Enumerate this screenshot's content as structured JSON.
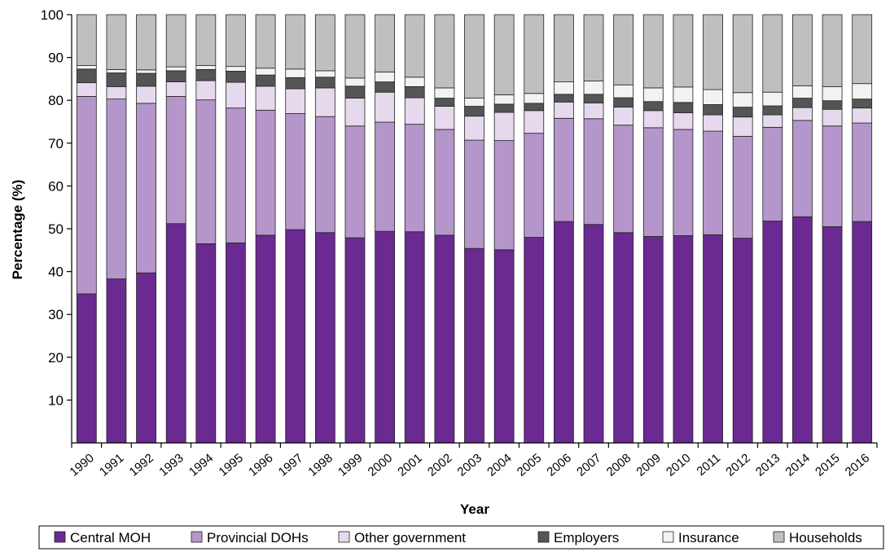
{
  "chart_data": {
    "type": "bar",
    "stacked": true,
    "xlabel": "Year",
    "ylabel": "Percentage (%)",
    "ylim": [
      0,
      100
    ],
    "yticks": [
      10,
      20,
      30,
      40,
      50,
      60,
      70,
      80,
      90,
      100
    ],
    "grid": false,
    "legend_position": "bottom",
    "categories": [
      "1990",
      "1991",
      "1992",
      "1993",
      "1994",
      "1995",
      "1996",
      "1997",
      "1998",
      "1999",
      "2000",
      "2001",
      "2002",
      "2003",
      "2004",
      "2005",
      "2006",
      "2007",
      "2008",
      "2009",
      "2010",
      "2011",
      "2012",
      "2013",
      "2014",
      "2015",
      "2016"
    ],
    "series": [
      {
        "name": "Central MOH",
        "color": "#6a2a91",
        "values": [
          34.8,
          38.3,
          39.7,
          51.2,
          46.5,
          46.7,
          48.5,
          49.8,
          49.1,
          47.9,
          49.4,
          49.3,
          48.5,
          45.4,
          45.1,
          48.0,
          51.7,
          51.0,
          49.1,
          48.2,
          48.4,
          48.6,
          47.8,
          51.8,
          52.8,
          50.5,
          51.7
        ]
      },
      {
        "name": "Provincial DOHs",
        "color": "#b596ca",
        "values": [
          46.1,
          42.0,
          39.6,
          29.7,
          33.6,
          31.5,
          29.2,
          27.1,
          27.1,
          26.1,
          25.5,
          25.1,
          24.7,
          25.3,
          25.5,
          24.3,
          24.1,
          24.7,
          25.1,
          25.4,
          24.8,
          24.2,
          23.8,
          21.9,
          22.5,
          23.5,
          23.0
        ]
      },
      {
        "name": "Other government",
        "color": "#e6d9ee",
        "values": [
          3.2,
          2.9,
          4.0,
          3.4,
          4.5,
          6.0,
          5.6,
          5.8,
          6.7,
          6.5,
          7.0,
          6.2,
          5.4,
          5.6,
          6.6,
          5.3,
          3.8,
          3.7,
          4.2,
          4.0,
          3.9,
          3.8,
          4.5,
          2.9,
          3.0,
          3.9,
          3.5
        ]
      },
      {
        "name": "Employers",
        "color": "#555555",
        "values": [
          3.2,
          3.2,
          3.0,
          2.6,
          2.6,
          2.6,
          2.6,
          2.6,
          2.5,
          2.8,
          2.4,
          2.6,
          1.9,
          2.3,
          1.9,
          1.7,
          1.8,
          2.0,
          2.2,
          2.1,
          2.4,
          2.4,
          2.3,
          2.1,
          2.2,
          2.0,
          2.1
        ]
      },
      {
        "name": "Insurance",
        "color": "#f2f2f2",
        "values": [
          0.8,
          0.8,
          0.8,
          0.9,
          0.9,
          1.1,
          1.6,
          2.0,
          1.5,
          1.9,
          2.3,
          2.2,
          2.4,
          1.9,
          2.2,
          2.3,
          2.9,
          3.1,
          3.0,
          3.2,
          3.6,
          3.5,
          3.4,
          3.2,
          2.9,
          3.3,
          3.6
        ]
      },
      {
        "name": "Households",
        "color": "#bfbfbf",
        "values": [
          11.9,
          12.8,
          12.9,
          12.2,
          11.9,
          12.1,
          12.5,
          12.7,
          13.1,
          14.8,
          13.4,
          14.6,
          17.1,
          19.5,
          18.7,
          18.4,
          15.7,
          15.5,
          16.4,
          17.1,
          16.9,
          17.5,
          18.2,
          18.1,
          16.6,
          16.8,
          16.1
        ]
      }
    ]
  }
}
